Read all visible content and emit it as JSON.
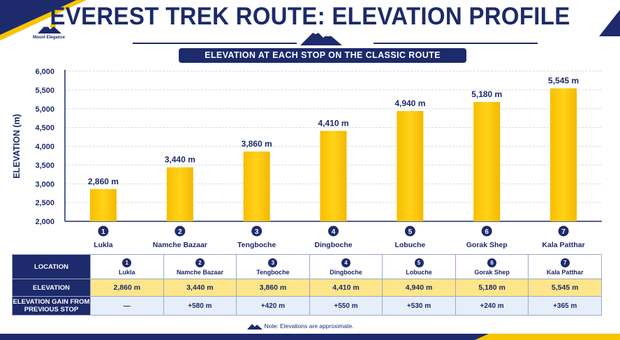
{
  "title": "EVEREST TREK ROUTE: ELEVATION PROFILE",
  "subtitle": "ELEVATION AT EACH STOP ON THE CLASSIC ROUTE",
  "logo_text": "Mount Elegance",
  "colors": {
    "navy": "#1d2a6b",
    "gold": "#f8c400",
    "gold_light": "#fde58a",
    "blue_light": "#e6eefa"
  },
  "chart_data": {
    "type": "bar",
    "categories": [
      "Lukla",
      "Namche Bazaar",
      "Tengboche",
      "Dingboche",
      "Lobuche",
      "Gorak Shep",
      "Kala Patthar"
    ],
    "values": [
      2860,
      3440,
      3860,
      4410,
      4940,
      5180,
      5545
    ],
    "data_labels": [
      "2,860 m",
      "3,440 m",
      "3,860 m",
      "4,410 m",
      "4,940 m",
      "5,180 m",
      "5,545 m"
    ],
    "category_numbers": [
      "1",
      "2",
      "3",
      "4",
      "5",
      "6",
      "7"
    ],
    "ylabel": "ELEVATION (m)",
    "xlabel": "",
    "ylim": [
      2000,
      6000
    ],
    "yticks": [
      2000,
      2500,
      3000,
      3500,
      4000,
      4500,
      5000,
      5500,
      6000
    ],
    "ytick_labels": [
      "2,000",
      "2,500",
      "3,000",
      "3,500",
      "4,000",
      "4,500",
      "5,000",
      "5,500",
      "6,000"
    ],
    "grid": true,
    "legend": "none"
  },
  "table": {
    "row_headers": [
      "LOCATION",
      "ELEVATION",
      "ELEVATION GAIN FROM PREVIOUS STOP"
    ],
    "locations": [
      {
        "num": "1",
        "name": "Lukla"
      },
      {
        "num": "2",
        "name": "Namche Bazaar"
      },
      {
        "num": "3",
        "name": "Tengboche"
      },
      {
        "num": "4",
        "name": "Dingboche"
      },
      {
        "num": "5",
        "name": "Lobuche"
      },
      {
        "num": "6",
        "name": "Gorak Shep"
      },
      {
        "num": "7",
        "name": "Kala Patthar"
      }
    ],
    "elevations": [
      "2,860 m",
      "3,440 m",
      "3,860 m",
      "4,410 m",
      "4,940 m",
      "5,180 m",
      "5,545 m"
    ],
    "gains": [
      "—",
      "+580 m",
      "+420 m",
      "+550 m",
      "+530 m",
      "+240 m",
      "+365 m"
    ]
  },
  "footnote": "Note: Elevations are approximate."
}
